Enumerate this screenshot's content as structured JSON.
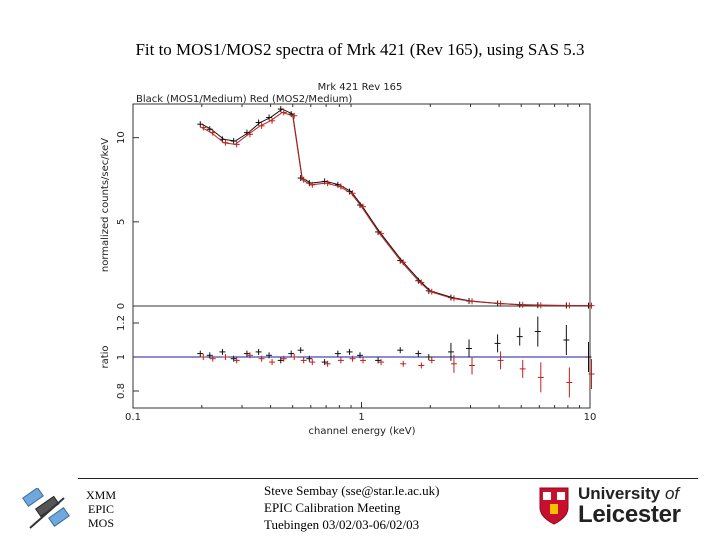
{
  "slide": {
    "title": "Fit to MOS1/MOS2 spectra of Mrk 421 (Rev 165), using SAS 5.3"
  },
  "chart_data": {
    "type": "scatter",
    "title": "Mrk 421   Rev 165",
    "subtitle": "Black (MOS1/Medium)   Red (MOS2/Medium)",
    "xlabel": "channel energy (keV)",
    "xscale": "log",
    "xlim": [
      0.1,
      10
    ],
    "x_tick_labels": [
      "0.1",
      "1",
      "10"
    ],
    "top_panel": {
      "ylabel": "normalized counts/sec/keV",
      "ylim": [
        0,
        12
      ],
      "y_tick_labels": [
        "0",
        "5",
        "10"
      ]
    },
    "bottom_panel": {
      "ylabel": "ratio",
      "ylim": [
        0.7,
        1.3
      ],
      "y_tick_labels": [
        "0.8",
        "1",
        "1.2"
      ]
    },
    "energies": [
      0.2,
      0.22,
      0.25,
      0.28,
      0.32,
      0.36,
      0.4,
      0.45,
      0.5,
      0.55,
      0.6,
      0.7,
      0.8,
      0.9,
      1.0,
      1.2,
      1.5,
      1.8,
      2.0,
      2.5,
      3.0,
      4.0,
      5.0,
      6.0,
      8.0,
      10.0
    ],
    "series": [
      {
        "name": "MOS1/Medium",
        "color": "#111111",
        "flux": [
          10.8,
          10.5,
          9.9,
          9.8,
          10.3,
          10.9,
          11.2,
          11.7,
          11.4,
          7.6,
          7.3,
          7.4,
          7.2,
          6.8,
          6.0,
          4.4,
          2.7,
          1.5,
          0.9,
          0.5,
          0.3,
          0.15,
          0.08,
          0.05,
          0.03,
          0.02
        ],
        "ratio": [
          1.02,
          1.01,
          1.03,
          0.99,
          1.02,
          1.03,
          1.01,
          0.98,
          1.02,
          1.04,
          0.99,
          0.97,
          1.02,
          1.03,
          1.01,
          0.98,
          1.04,
          1.02,
          1.0,
          1.03,
          1.05,
          1.08,
          1.12,
          1.15,
          1.1,
          1.0
        ]
      },
      {
        "name": "MOS2/Medium",
        "color": "#c0201c",
        "flux": [
          10.6,
          10.3,
          9.7,
          9.6,
          10.2,
          10.7,
          11.0,
          11.5,
          11.3,
          7.5,
          7.2,
          7.3,
          7.1,
          6.7,
          5.9,
          4.3,
          2.6,
          1.4,
          0.85,
          0.45,
          0.28,
          0.14,
          0.07,
          0.04,
          0.03,
          0.02
        ],
        "ratio": [
          1.0,
          0.99,
          1.0,
          0.98,
          1.01,
          0.99,
          0.97,
          0.99,
          1.0,
          0.98,
          0.97,
          0.96,
          0.98,
          0.99,
          0.98,
          0.97,
          0.96,
          0.95,
          0.98,
          0.96,
          0.95,
          0.98,
          0.93,
          0.88,
          0.85,
          0.9
        ]
      }
    ]
  },
  "footer": {
    "left_lines": [
      "XMM",
      "EPIC",
      "MOS"
    ],
    "center_lines": [
      "Steve Sembay (sse@star.le.ac.uk)",
      "EPIC Calibration Meeting",
      "Tuebingen 03/02/03-06/02/03"
    ],
    "logo_line1": "University",
    "logo_of": "of",
    "logo_line2": "Leicester",
    "satellite_icon": "satellite-icon",
    "crest_icon": "university-crest-icon"
  }
}
